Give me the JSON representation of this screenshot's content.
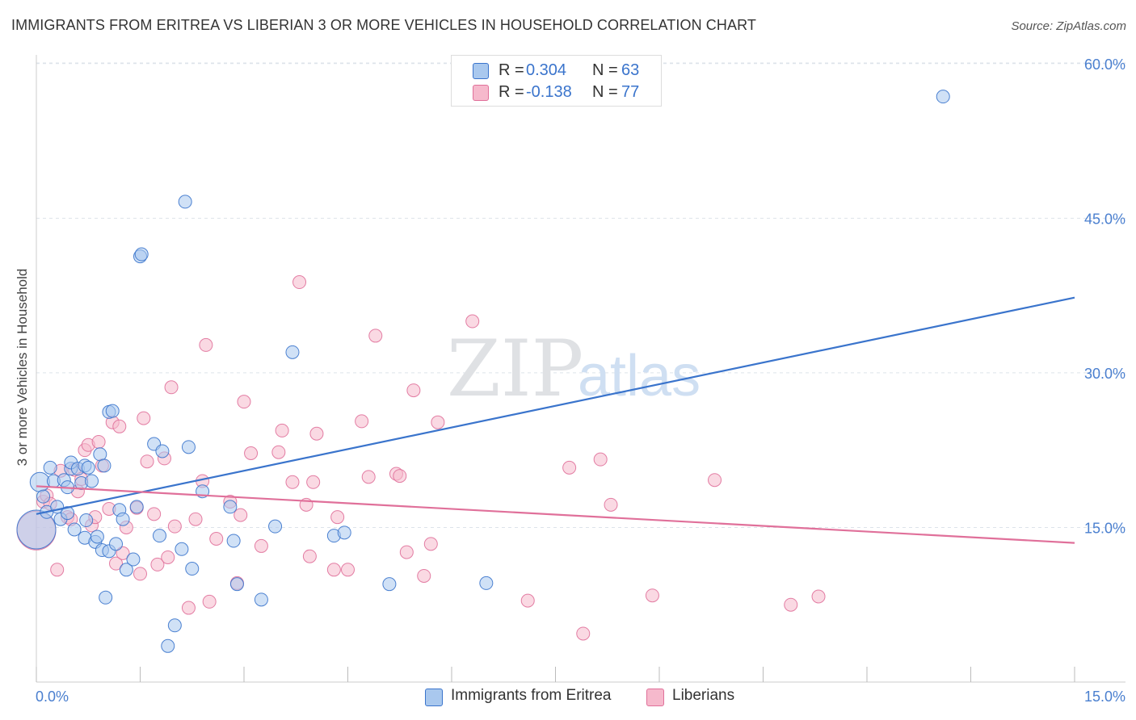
{
  "header": {
    "title": "IMMIGRANTS FROM ERITREA VS LIBERIAN 3 OR MORE VEHICLES IN HOUSEHOLD CORRELATION CHART",
    "source": "Source: ZipAtlas.com"
  },
  "watermark": {
    "zip": "ZIP",
    "atlas": "atlas"
  },
  "colors": {
    "blue": "#3a74cc",
    "blue_fill": "#a9c8ee",
    "pink": "#e0709a",
    "pink_fill": "#f6b9cc",
    "grid": "#dde3ea",
    "tick_label": "#4a7fcf"
  },
  "legend_top": {
    "rows": [
      {
        "r_label": "R =",
        "r_value": "0.304",
        "n_label": "N =",
        "n_value": "63"
      },
      {
        "r_label": "R =",
        "r_value": "-0.138",
        "n_label": "N =",
        "n_value": "77"
      }
    ]
  },
  "legend_bottom": {
    "items": [
      {
        "label": "Immigrants from Eritrea"
      },
      {
        "label": "Liberians"
      }
    ]
  },
  "chart_data": {
    "type": "scatter",
    "title": "IMMIGRANTS FROM ERITREA VS LIBERIAN 3 OR MORE VEHICLES IN HOUSEHOLD CORRELATION CHART",
    "xlabel": "",
    "ylabel": "3 or more Vehicles in Household",
    "xlim": [
      0,
      15
    ],
    "ylim": [
      0,
      63
    ],
    "x_tick_labels": [
      {
        "value": 0,
        "label": "0.0%"
      },
      {
        "value": 15,
        "label": "15.0%"
      }
    ],
    "y_tick_labels": [
      {
        "value": 15,
        "label": "15.0%"
      },
      {
        "value": 30,
        "label": "30.0%"
      },
      {
        "value": 45,
        "label": "45.0%"
      },
      {
        "value": 60,
        "label": "60.0%"
      }
    ],
    "grid": true,
    "legend_position": "top-center",
    "series": [
      {
        "name": "Immigrants from Eritrea",
        "color": "#3a74cc",
        "trend": {
          "x": [
            0,
            15
          ],
          "y": [
            16.3,
            37.3
          ]
        },
        "points": [
          [
            0.0,
            14.8,
            3
          ],
          [
            0.05,
            19.4,
            1.5
          ],
          [
            0.1,
            18.0,
            1
          ],
          [
            0.15,
            16.5,
            1
          ],
          [
            0.2,
            20.8,
            1
          ],
          [
            0.25,
            19.5,
            1
          ],
          [
            0.3,
            17.0,
            1
          ],
          [
            0.35,
            15.8,
            1
          ],
          [
            0.4,
            19.6,
            1
          ],
          [
            0.45,
            18.9,
            1
          ],
          [
            0.45,
            16.4,
            1
          ],
          [
            0.5,
            20.7,
            1
          ],
          [
            0.5,
            21.3,
            1
          ],
          [
            0.55,
            14.8,
            1
          ],
          [
            0.6,
            20.7,
            1
          ],
          [
            0.65,
            19.3,
            1
          ],
          [
            0.7,
            21.0,
            1
          ],
          [
            0.7,
            14.0,
            1
          ],
          [
            0.72,
            15.7,
            1
          ],
          [
            0.75,
            20.8,
            1
          ],
          [
            0.8,
            19.5,
            1
          ],
          [
            0.85,
            13.6,
            1
          ],
          [
            0.88,
            14.1,
            1
          ],
          [
            0.92,
            22.1,
            1
          ],
          [
            0.95,
            12.8,
            1
          ],
          [
            0.98,
            21.0,
            1
          ],
          [
            1.0,
            8.2,
            1
          ],
          [
            1.05,
            12.7,
            1
          ],
          [
            1.05,
            26.2,
            1
          ],
          [
            1.1,
            26.3,
            1
          ],
          [
            1.15,
            13.4,
            1
          ],
          [
            1.2,
            16.7,
            1
          ],
          [
            1.25,
            15.8,
            1
          ],
          [
            1.3,
            10.9,
            1
          ],
          [
            1.4,
            11.9,
            1
          ],
          [
            1.45,
            17.0,
            1
          ],
          [
            1.5,
            41.3,
            1
          ],
          [
            1.52,
            41.5,
            1
          ],
          [
            1.7,
            23.1,
            1
          ],
          [
            1.78,
            14.2,
            1
          ],
          [
            1.82,
            22.4,
            1
          ],
          [
            1.9,
            3.5,
            1
          ],
          [
            2.0,
            5.5,
            1
          ],
          [
            2.1,
            12.9,
            1
          ],
          [
            2.15,
            46.6,
            1
          ],
          [
            2.2,
            22.8,
            1
          ],
          [
            2.25,
            11.0,
            1
          ],
          [
            2.4,
            18.5,
            1
          ],
          [
            2.8,
            17.0,
            1
          ],
          [
            2.85,
            13.7,
            1
          ],
          [
            2.9,
            9.5,
            1
          ],
          [
            3.25,
            8.0,
            1
          ],
          [
            3.45,
            15.1,
            1
          ],
          [
            3.7,
            32.0,
            1
          ],
          [
            4.3,
            14.2,
            1
          ],
          [
            4.45,
            14.5,
            1
          ],
          [
            5.1,
            9.5,
            1
          ],
          [
            6.5,
            9.6,
            1
          ],
          [
            13.1,
            56.8,
            1
          ]
        ]
      },
      {
        "name": "Liberians",
        "color": "#e0709a",
        "trend": {
          "x": [
            0,
            15
          ],
          "y": [
            19.0,
            13.5
          ]
        },
        "points": [
          [
            0.0,
            14.7,
            3
          ],
          [
            0.1,
            17.5,
            1
          ],
          [
            0.15,
            18.1,
            1
          ],
          [
            0.2,
            17.3,
            1
          ],
          [
            0.3,
            10.9,
            1
          ],
          [
            0.35,
            20.5,
            1
          ],
          [
            0.45,
            16.0,
            1
          ],
          [
            0.5,
            15.8,
            1
          ],
          [
            0.55,
            20.6,
            1
          ],
          [
            0.6,
            18.5,
            1
          ],
          [
            0.65,
            19.7,
            1
          ],
          [
            0.7,
            22.5,
            1
          ],
          [
            0.75,
            23.0,
            1
          ],
          [
            0.8,
            15.2,
            1
          ],
          [
            0.85,
            16.0,
            1
          ],
          [
            0.9,
            23.3,
            1
          ],
          [
            0.95,
            21.0,
            1
          ],
          [
            1.05,
            16.8,
            1
          ],
          [
            1.1,
            25.2,
            1
          ],
          [
            1.15,
            11.5,
            1
          ],
          [
            1.2,
            24.8,
            1
          ],
          [
            1.25,
            12.5,
            1
          ],
          [
            1.3,
            15.0,
            1
          ],
          [
            1.45,
            16.9,
            1
          ],
          [
            1.5,
            10.5,
            1
          ],
          [
            1.55,
            25.6,
            1
          ],
          [
            1.6,
            21.4,
            1
          ],
          [
            1.7,
            16.3,
            1
          ],
          [
            1.75,
            11.4,
            1
          ],
          [
            1.85,
            21.7,
            1
          ],
          [
            1.9,
            12.1,
            1
          ],
          [
            1.95,
            28.6,
            1
          ],
          [
            2.0,
            15.1,
            1
          ],
          [
            2.2,
            7.2,
            1
          ],
          [
            2.3,
            15.8,
            1
          ],
          [
            2.4,
            19.5,
            1
          ],
          [
            2.45,
            32.7,
            1
          ],
          [
            2.5,
            7.8,
            1
          ],
          [
            2.6,
            13.9,
            1
          ],
          [
            2.8,
            17.5,
            1
          ],
          [
            2.9,
            9.6,
            1
          ],
          [
            2.95,
            16.2,
            1
          ],
          [
            3.0,
            27.2,
            1
          ],
          [
            3.1,
            22.2,
            1
          ],
          [
            3.25,
            13.2,
            1
          ],
          [
            3.5,
            22.3,
            1
          ],
          [
            3.55,
            24.4,
            1
          ],
          [
            3.7,
            19.4,
            1
          ],
          [
            3.8,
            38.8,
            1
          ],
          [
            3.9,
            17.2,
            1
          ],
          [
            3.95,
            12.2,
            1
          ],
          [
            4.0,
            19.4,
            1
          ],
          [
            4.05,
            24.1,
            1
          ],
          [
            4.3,
            10.9,
            1
          ],
          [
            4.35,
            16.0,
            1
          ],
          [
            4.5,
            10.9,
            1
          ],
          [
            4.7,
            25.3,
            1
          ],
          [
            4.8,
            19.9,
            1
          ],
          [
            4.9,
            33.6,
            1
          ],
          [
            5.2,
            20.2,
            1
          ],
          [
            5.25,
            20.0,
            1
          ],
          [
            5.35,
            12.6,
            1
          ],
          [
            5.45,
            28.3,
            1
          ],
          [
            5.6,
            10.3,
            1
          ],
          [
            5.7,
            13.4,
            1
          ],
          [
            5.8,
            25.2,
            1
          ],
          [
            6.3,
            35.0,
            1
          ],
          [
            7.1,
            7.9,
            1
          ],
          [
            7.7,
            20.8,
            1
          ],
          [
            7.9,
            4.7,
            1
          ],
          [
            8.15,
            21.6,
            1
          ],
          [
            8.3,
            17.2,
            1
          ],
          [
            8.9,
            8.4,
            1
          ],
          [
            9.8,
            19.6,
            1
          ],
          [
            10.9,
            7.5,
            1
          ],
          [
            11.3,
            8.3,
            1
          ]
        ]
      }
    ]
  }
}
